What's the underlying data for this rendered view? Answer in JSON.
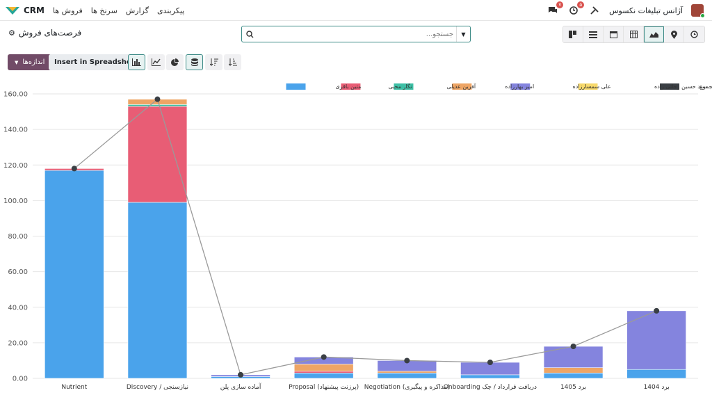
{
  "topbar": {
    "app_name": "CRM",
    "menu": [
      "فروش ها",
      "سرنخ ها",
      "گزارش",
      "پیکربندی"
    ],
    "company": "آژانس تبلیغات نکسوس",
    "chat_badge": "۷",
    "activity_badge": "۵"
  },
  "control": {
    "page_title": "فرصت‌های فروش",
    "search_placeholder": "جستجو..."
  },
  "actions": {
    "measures_label": "اندازه‌ها",
    "spreadsheet_label": "Insert in Spreadsheet"
  },
  "colors": {
    "accent": "#3c8a86",
    "brand": "#714b67"
  },
  "chart_data": {
    "type": "bar",
    "stacked": true,
    "ylim": [
      0,
      160
    ],
    "yticks": [
      "0.00",
      "20.00",
      "40.00",
      "60.00",
      "80.00",
      "100.00",
      "120.00",
      "140.00",
      "160.00"
    ],
    "categories": [
      "Nutrient",
      "Discovery / نیازسنجی",
      "آماده سازی پلن",
      "Proposal (پرزنت پیشنهاد)",
      "Negotiation (مذاکره و پیگیری)",
      "Onboarding دریافت قرارداد / چک",
      "برد 1405",
      "برد 1404"
    ],
    "legend_position": "top-right",
    "series": [
      {
        "name": "متین باقری",
        "color": "#4aa3eb",
        "values": [
          117,
          99,
          1,
          3,
          3,
          2,
          3,
          5
        ]
      },
      {
        "name": "نگار محبی",
        "color": "#e85d75",
        "values": [
          1,
          54,
          0,
          1,
          0,
          0,
          0,
          0
        ]
      },
      {
        "name": "آفرین عدیلی",
        "color": "#3dbfa5",
        "values": [
          0,
          1,
          0,
          0,
          0,
          0,
          0,
          0
        ]
      },
      {
        "name": "امیر بهارزاده",
        "color": "#eea565",
        "values": [
          0,
          3,
          0,
          4,
          1,
          0,
          3,
          0
        ]
      },
      {
        "name": "علی سمسارزاده",
        "color": "#8484de",
        "values": [
          0,
          0,
          1,
          4,
          6,
          7,
          12,
          33
        ]
      },
      {
        "name": "سید حسین رجائی زاده",
        "color": "#f7d96c",
        "values": [
          0,
          0,
          0,
          0,
          0,
          0,
          0,
          0
        ]
      }
    ],
    "total": {
      "name": "مجموع",
      "color": "#3a3f44",
      "values": [
        118,
        157,
        2,
        12,
        10,
        9,
        18,
        38
      ]
    }
  }
}
